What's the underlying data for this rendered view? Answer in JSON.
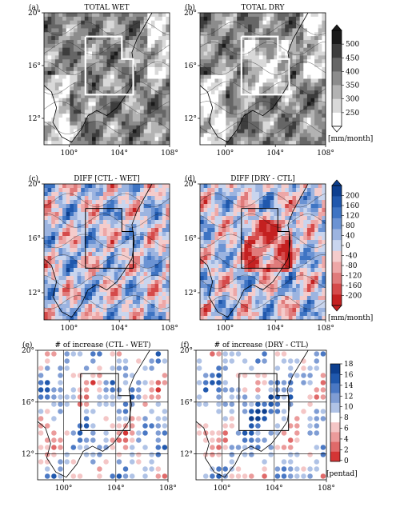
{
  "chart_data": [
    {
      "type": "heatmap",
      "panel": "(a)",
      "title": "TOTAL WET",
      "x_ticks": [
        "100°",
        "104°",
        "108°"
      ],
      "y_ticks": [
        "20°",
        "16°",
        "12°"
      ],
      "xlim": [
        98,
        108
      ],
      "ylim": [
        10,
        20
      ],
      "colorbar": "total",
      "field": "total_wet"
    },
    {
      "type": "heatmap",
      "panel": "(b)",
      "title": "TOTAL DRY",
      "x_ticks": [
        "100°",
        "104°",
        "108°"
      ],
      "y_ticks": [
        "20°",
        "16°",
        "12°"
      ],
      "xlim": [
        98,
        108
      ],
      "ylim": [
        10,
        20
      ],
      "colorbar": "total",
      "field": "total_dry"
    },
    {
      "type": "heatmap",
      "panel": "(c)",
      "title": "DIFF [CTL - WET]",
      "x_ticks": [
        "100°",
        "104°",
        "108°"
      ],
      "y_ticks": [
        "20°",
        "16°",
        "12°"
      ],
      "xlim": [
        98,
        108
      ],
      "ylim": [
        10,
        20
      ],
      "colorbar": "diff",
      "field": "diff_wet"
    },
    {
      "type": "heatmap",
      "panel": "(d)",
      "title": "DIFF [DRY - CTL]",
      "x_ticks": [
        "100°",
        "104°",
        "108°"
      ],
      "y_ticks": [
        "20°",
        "16°",
        "12°"
      ],
      "xlim": [
        98,
        108
      ],
      "ylim": [
        10,
        20
      ],
      "colorbar": "diff",
      "field": "diff_dry"
    },
    {
      "type": "scatter",
      "panel": "(e)",
      "title": "# of increase (CTL - WET)",
      "x_ticks": [
        "100°",
        "104°",
        "108°"
      ],
      "y_ticks": [
        "20°",
        "16°",
        "12°"
      ],
      "xlim": [
        98,
        108
      ],
      "ylim": [
        10,
        20
      ],
      "colorbar": "count",
      "field": "count_wet"
    },
    {
      "type": "scatter",
      "panel": "(f)",
      "title": "# of increase (DRY - CTL)",
      "x_ticks": [
        "100°",
        "104°",
        "108°"
      ],
      "y_ticks": [
        "20°",
        "16°",
        "12°"
      ],
      "xlim": [
        98,
        108
      ],
      "ylim": [
        10,
        20
      ],
      "colorbar": "count",
      "field": "count_dry"
    }
  ],
  "colorbars": {
    "total": {
      "labels": [
        "500",
        "450",
        "400",
        "350",
        "300",
        "250"
      ],
      "unit": "[mm/month]",
      "colors": [
        "#1a1a1a",
        "#3d3d3d",
        "#666666",
        "#8c8c8c",
        "#b3b3b3",
        "#d9d9d9",
        "#ffffff"
      ]
    },
    "diff": {
      "labels": [
        "200",
        "160",
        "120",
        "80",
        "40",
        "0",
        "-40",
        "-80",
        "-120",
        "-160",
        "-200"
      ],
      "unit": "[mm/month]",
      "colors": [
        "#0d3f8f",
        "#2058ad",
        "#3e74c3",
        "#6b93d3",
        "#9cb4e0",
        "#c9d5ee",
        "#f4cccc",
        "#eda7a7",
        "#e07b7b",
        "#d54a4a",
        "#c42020"
      ]
    },
    "count": {
      "labels": [
        "18",
        "16",
        "14",
        "12",
        "10",
        "8",
        "6",
        "4",
        "2",
        "0"
      ],
      "unit": "[pentad]",
      "colors": [
        "#0d3f8f",
        "#2058ad",
        "#4a78c4",
        "#7f9dd4",
        "#b0c3e6",
        "#ffffff",
        "#f4c6c6",
        "#eb9b9b",
        "#e06a6a",
        "#d43535"
      ]
    }
  }
}
